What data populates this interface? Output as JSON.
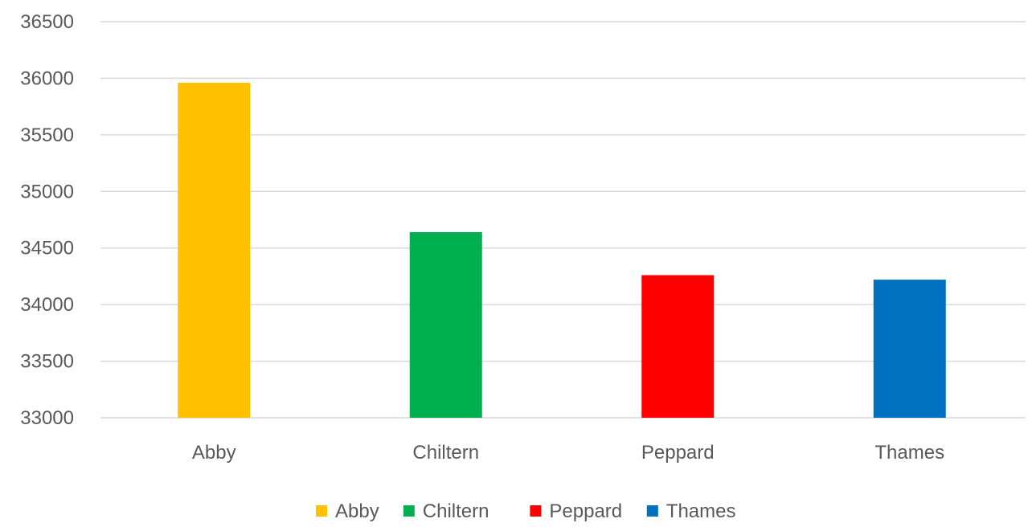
{
  "chart_data": {
    "type": "bar",
    "title": "",
    "xlabel": "",
    "ylabel": "",
    "categories": [
      "Abby",
      "Chiltern",
      "Peppard",
      "Thames"
    ],
    "values": [
      35960,
      34640,
      34260,
      34220
    ],
    "colors": [
      "#FFC000",
      "#00B050",
      "#FF0000",
      "#0070C0"
    ],
    "ylim": [
      33000,
      36500
    ],
    "yticks": [
      33000,
      33500,
      34000,
      34500,
      35000,
      35500,
      36000,
      36500
    ],
    "grid": true,
    "legend": {
      "position": "bottom",
      "entries": [
        "Abby",
        "Chiltern",
        "Peppard",
        "Thames"
      ]
    }
  }
}
